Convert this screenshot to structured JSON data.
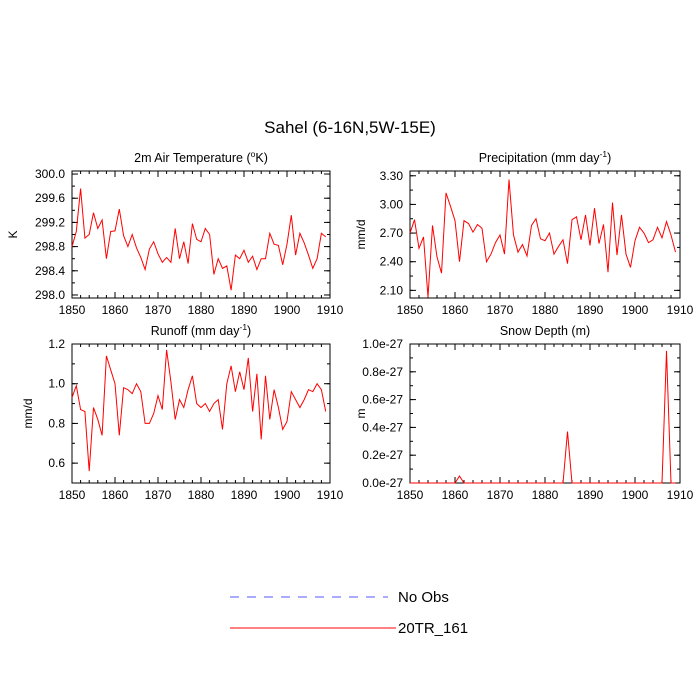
{
  "title": "Sahel (6-16N,5W-15E)",
  "legend": [
    {
      "label": "No Obs",
      "color": "#5555ff",
      "dash": true
    },
    {
      "label": "20TR_161",
      "color": "#ff0000",
      "dash": false
    }
  ],
  "chart_data": [
    {
      "type": "line",
      "title_main": "2m Air Temperature (",
      "title_sup": "o",
      "title_end": "K)",
      "ylabel": "K",
      "xlim": [
        1850,
        1910
      ],
      "ylim": [
        297.95,
        300.05
      ],
      "xticks": [
        "1850",
        "1860",
        "1870",
        "1880",
        "1890",
        "1900",
        "1910"
      ],
      "yticks": [
        "298.0",
        "298.4",
        "298.8",
        "299.2",
        "299.6",
        "300.0"
      ],
      "ytick_values": [
        298.0,
        298.4,
        298.8,
        299.2,
        299.6,
        300.0
      ],
      "x": [
        1850,
        1851,
        1852,
        1853,
        1854,
        1855,
        1856,
        1857,
        1858,
        1859,
        1860,
        1861,
        1862,
        1863,
        1864,
        1865,
        1866,
        1867,
        1868,
        1869,
        1870,
        1871,
        1872,
        1873,
        1874,
        1875,
        1876,
        1877,
        1878,
        1879,
        1880,
        1881,
        1882,
        1883,
        1884,
        1885,
        1886,
        1887,
        1888,
        1889,
        1890,
        1891,
        1892,
        1893,
        1894,
        1895,
        1896,
        1897,
        1898,
        1899,
        1900,
        1901,
        1902,
        1903,
        1904,
        1905,
        1906,
        1907,
        1908,
        1909
      ],
      "series": [
        {
          "name": "20TR_161",
          "color": "#ff0000",
          "values": [
            298.8,
            299.05,
            299.76,
            298.94,
            299.0,
            299.36,
            299.1,
            299.24,
            298.6,
            299.05,
            299.06,
            299.42,
            298.98,
            298.8,
            299.0,
            298.78,
            298.62,
            298.42,
            298.76,
            298.88,
            298.68,
            298.54,
            298.62,
            298.54,
            299.1,
            298.6,
            298.88,
            298.52,
            299.18,
            298.92,
            298.88,
            299.1,
            299.0,
            298.34,
            298.6,
            298.44,
            298.48,
            298.08,
            298.66,
            298.6,
            298.74,
            298.54,
            298.64,
            298.42,
            298.6,
            298.6,
            299.02,
            298.84,
            298.82,
            298.5,
            298.84,
            299.32,
            298.66,
            299.02,
            298.86,
            298.66,
            298.44,
            298.6,
            299.02,
            298.96
          ]
        }
      ]
    },
    {
      "type": "line",
      "title_main": "Precipitation (mm day",
      "title_sup": "-1",
      "title_end": ")",
      "ylabel": "mm/d",
      "xlim": [
        1850,
        1910
      ],
      "ylim": [
        2.02,
        3.35
      ],
      "xticks": [
        "1850",
        "1860",
        "1870",
        "1880",
        "1890",
        "1900",
        "1910"
      ],
      "yticks": [
        "2.10",
        "2.40",
        "2.70",
        "3.00",
        "3.30"
      ],
      "ytick_values": [
        2.1,
        2.4,
        2.7,
        3.0,
        3.3
      ],
      "x": [
        1850,
        1851,
        1852,
        1853,
        1854,
        1855,
        1856,
        1857,
        1858,
        1859,
        1860,
        1861,
        1862,
        1863,
        1864,
        1865,
        1866,
        1867,
        1868,
        1869,
        1870,
        1871,
        1872,
        1873,
        1874,
        1875,
        1876,
        1877,
        1878,
        1879,
        1880,
        1881,
        1882,
        1883,
        1884,
        1885,
        1886,
        1887,
        1888,
        1889,
        1890,
        1891,
        1892,
        1893,
        1894,
        1895,
        1896,
        1897,
        1898,
        1899,
        1900,
        1901,
        1902,
        1903,
        1904,
        1905,
        1906,
        1907,
        1908,
        1909
      ],
      "series": [
        {
          "name": "20TR_161",
          "color": "#ff0000",
          "values": [
            2.7,
            2.84,
            2.54,
            2.66,
            2.03,
            2.78,
            2.45,
            2.28,
            3.12,
            2.98,
            2.83,
            2.4,
            2.83,
            2.8,
            2.71,
            2.79,
            2.75,
            2.4,
            2.48,
            2.6,
            2.68,
            2.48,
            3.26,
            2.68,
            2.5,
            2.58,
            2.46,
            2.78,
            2.85,
            2.64,
            2.62,
            2.7,
            2.48,
            2.56,
            2.63,
            2.38,
            2.84,
            2.87,
            2.63,
            2.89,
            2.57,
            2.96,
            2.59,
            2.79,
            2.29,
            3.02,
            2.47,
            2.89,
            2.48,
            2.34,
            2.62,
            2.76,
            2.7,
            2.6,
            2.63,
            2.76,
            2.65,
            2.82,
            2.68,
            2.5
          ]
        }
      ]
    },
    {
      "type": "line",
      "title_main": "Runoff (mm day",
      "title_sup": "-1",
      "title_end": ")",
      "ylabel": "mm/d",
      "xlim": [
        1850,
        1910
      ],
      "ylim": [
        0.5,
        1.2
      ],
      "xticks": [
        "1850",
        "1860",
        "1870",
        "1880",
        "1890",
        "1900",
        "1910"
      ],
      "yticks": [
        "0.6",
        "0.8",
        "1.0",
        "1.2"
      ],
      "ytick_values": [
        0.6,
        0.8,
        1.0,
        1.2
      ],
      "x": [
        1850,
        1851,
        1852,
        1853,
        1854,
        1855,
        1856,
        1857,
        1858,
        1859,
        1860,
        1861,
        1862,
        1863,
        1864,
        1865,
        1866,
        1867,
        1868,
        1869,
        1870,
        1871,
        1872,
        1873,
        1874,
        1875,
        1876,
        1877,
        1878,
        1879,
        1880,
        1881,
        1882,
        1883,
        1884,
        1885,
        1886,
        1887,
        1888,
        1889,
        1890,
        1891,
        1892,
        1893,
        1894,
        1895,
        1896,
        1897,
        1898,
        1899,
        1900,
        1901,
        1902,
        1903,
        1904,
        1905,
        1906,
        1907,
        1908,
        1909
      ],
      "series": [
        {
          "name": "20TR_161",
          "color": "#ff0000",
          "values": [
            0.93,
            0.99,
            0.87,
            0.86,
            0.56,
            0.88,
            0.82,
            0.74,
            1.14,
            1.07,
            1.0,
            0.74,
            0.98,
            0.97,
            0.95,
            1.0,
            0.96,
            0.8,
            0.8,
            0.85,
            0.94,
            0.87,
            1.17,
            1.01,
            0.82,
            0.92,
            0.88,
            0.97,
            1.04,
            0.9,
            0.88,
            0.9,
            0.86,
            0.9,
            0.92,
            0.77,
            1.0,
            1.09,
            0.96,
            1.06,
            0.97,
            1.13,
            0.86,
            1.05,
            0.72,
            1.04,
            0.82,
            0.97,
            0.88,
            0.77,
            0.81,
            0.96,
            0.92,
            0.88,
            0.92,
            0.97,
            0.96,
            1.0,
            0.97,
            0.86
          ]
        }
      ]
    },
    {
      "type": "line",
      "title_main": "Snow Depth (m)",
      "title_sup": "",
      "title_end": "",
      "ylabel": "m",
      "xlim": [
        1850,
        1910
      ],
      "ylim": [
        0.0,
        1.0
      ],
      "xticks": [
        "1850",
        "1860",
        "1870",
        "1880",
        "1890",
        "1900",
        "1910"
      ],
      "yticks": [
        "0.0e-27",
        "0.2e-27",
        "0.4e-27",
        "0.6e-27",
        "0.8e-27",
        "1.0e-27"
      ],
      "ytick_values": [
        0.0,
        0.2,
        0.4,
        0.6,
        0.8,
        1.0
      ],
      "x": [
        1850,
        1851,
        1852,
        1853,
        1854,
        1855,
        1856,
        1857,
        1858,
        1859,
        1860,
        1861,
        1862,
        1863,
        1864,
        1865,
        1866,
        1867,
        1868,
        1869,
        1870,
        1871,
        1872,
        1873,
        1874,
        1875,
        1876,
        1877,
        1878,
        1879,
        1880,
        1881,
        1882,
        1883,
        1884,
        1885,
        1886,
        1887,
        1888,
        1889,
        1890,
        1891,
        1892,
        1893,
        1894,
        1895,
        1896,
        1897,
        1898,
        1899,
        1900,
        1901,
        1902,
        1903,
        1904,
        1905,
        1906,
        1907,
        1908,
        1909
      ],
      "series": [
        {
          "name": "20TR_161",
          "color": "#ff0000",
          "values": [
            0,
            0,
            0,
            0,
            0,
            0,
            0,
            0,
            0,
            0,
            0,
            0.05,
            0,
            0,
            0,
            0,
            0,
            0,
            0,
            0,
            0,
            0,
            0,
            0,
            0,
            0,
            0,
            0,
            0,
            0,
            0,
            0,
            0,
            0,
            0,
            0.37,
            0,
            0,
            0,
            0,
            0,
            0,
            0,
            0,
            0,
            0,
            0,
            0,
            0,
            0,
            0,
            0,
            0,
            0,
            0,
            0,
            0,
            0.95,
            0,
            0
          ]
        }
      ]
    }
  ]
}
